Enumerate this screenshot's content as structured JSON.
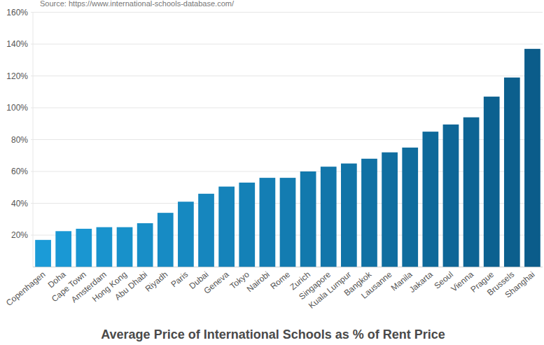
{
  "chart_data": {
    "type": "bar",
    "title": "Average Price of International Schools as % of Rent Price",
    "source": "Source: https://www.international-schools-database.com/",
    "categories": [
      "Copenhagen",
      "Doha",
      "Cape Town",
      "Amsterdam",
      "Hong Kong",
      "Abu Dhabi",
      "Riyadh",
      "Paris",
      "Dubai",
      "Geneva",
      "Tokyo",
      "Nairobi",
      "Rome",
      "Zurich",
      "Singapore",
      "Kuala Lumpur",
      "Bangkok",
      "Lausanne",
      "Manila",
      "Jakarta",
      "Seoul",
      "Vienna",
      "Prague",
      "Brussels",
      "Shanghai"
    ],
    "values": [
      17,
      22.5,
      24,
      25,
      25,
      27.5,
      34,
      41,
      46,
      50.5,
      53,
      56,
      56,
      60,
      63,
      65,
      68,
      72,
      75,
      85,
      89.5,
      94,
      107,
      119,
      137
    ],
    "colors": [
      "#1b9bd7",
      "#1a98d4",
      "#1a96d1",
      "#1993cd",
      "#1891ca",
      "#188ec7",
      "#178bc4",
      "#1689c1",
      "#1686be",
      "#1583ba",
      "#1481b7",
      "#147eb4",
      "#137cb1",
      "#1279ad",
      "#1276aa",
      "#1174a7",
      "#1071a4",
      "#106ea0",
      "#0f6c9d",
      "#0e699a",
      "#0e6697",
      "#0d6494",
      "#0c6190",
      "#0c5f8d",
      "#0b5c8a"
    ],
    "ylim": [
      0,
      160
    ],
    "yticks": [
      {
        "value": 20,
        "label": "20%"
      },
      {
        "value": 40,
        "label": "40%"
      },
      {
        "value": 60,
        "label": "60%"
      },
      {
        "value": 80,
        "label": "80%"
      },
      {
        "value": 100,
        "label": "100%"
      },
      {
        "value": 120,
        "label": "120%"
      },
      {
        "value": 140,
        "label": "140%"
      },
      {
        "value": 160,
        "label": "160%"
      }
    ],
    "grid": true
  }
}
